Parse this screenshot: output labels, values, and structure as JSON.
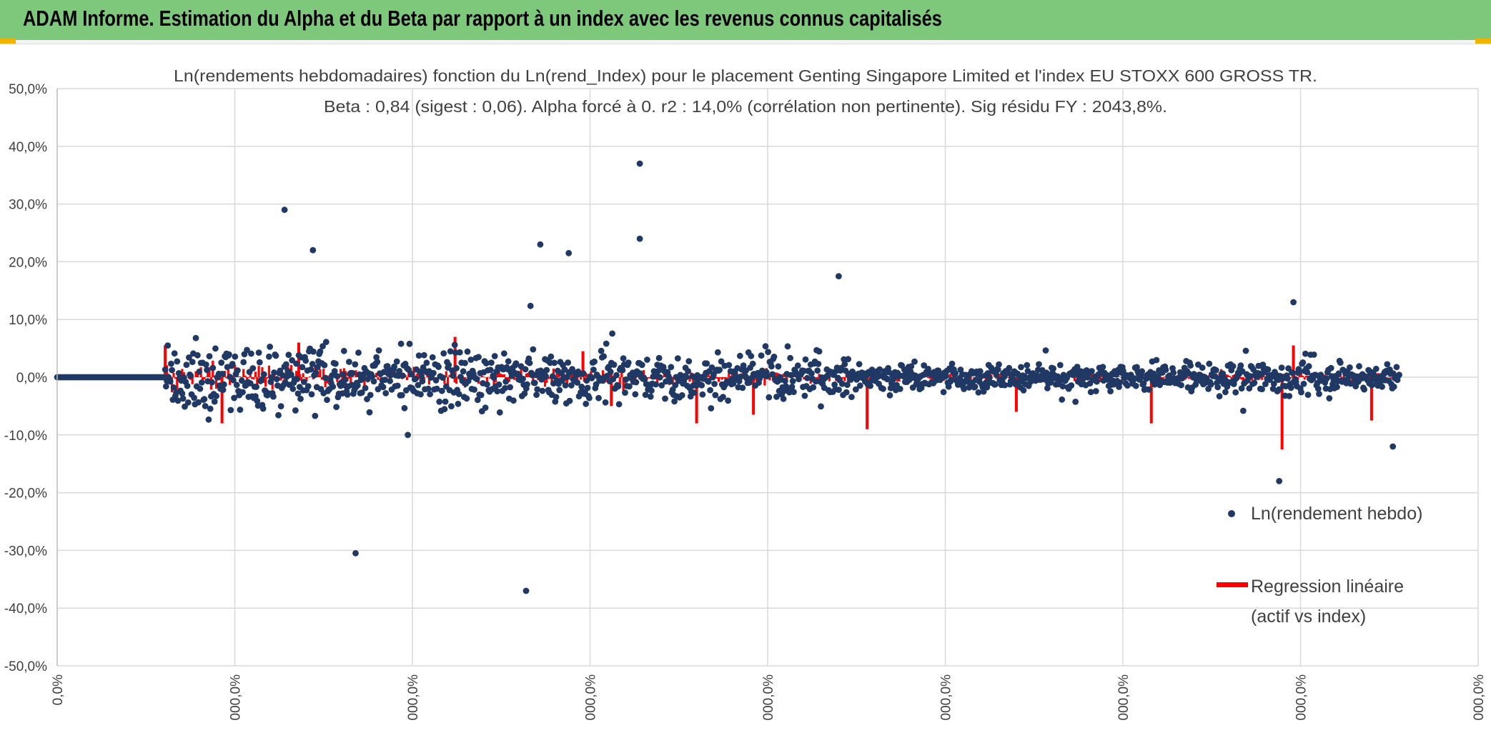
{
  "header": {
    "title": "ADAM Informe. Estimation du Alpha et du Beta par rapport à un index avec les revenus connus capitalisés"
  },
  "colors": {
    "banner": "#7ec87c",
    "points": "#203864",
    "regression": "#ff0000",
    "grid": "#d9d9d9",
    "corner_accent": "#f0b400"
  },
  "chart_data": {
    "type": "scatter",
    "title": "Ln(rendements hebdomadaires) fonction du Ln(rend_Index) pour le placement Genting Singapore Limited et l'index EU STOXX 600 GROSS TR.",
    "subtitle": "Beta : 0,84 (sigest : 0,06). Alpha forcé à 0. r2 : 14,0% (corrélation non pertinente). Sig résidu FY : 2043,8%.",
    "xlabel": "",
    "ylabel": "",
    "ylim": [
      -0.5,
      0.5
    ],
    "y_ticks": [
      "50,0%",
      "40,0%",
      "30,0%",
      "20,0%",
      "10,0%",
      "0,0%",
      "-10,0%",
      "-20,0%",
      "-30,0%",
      "-40,0%",
      "-50,0%"
    ],
    "x_ticks": [
      "0,0%",
      "000,0%",
      "000,0%",
      "000,0%",
      "000,0%",
      "000,0%",
      "000,0%",
      "000,0%",
      "000,0%"
    ],
    "grid": true,
    "legend_position": "right",
    "series": [
      {
        "name": "Ln(rendement hebdo)",
        "style": "markers",
        "color": "#203864"
      },
      {
        "name": "Regression linéaire (actif vs index)",
        "style": "line",
        "color": "#ff0000"
      }
    ],
    "notable_points": [
      {
        "x_index": 0.16,
        "y": 0.29
      },
      {
        "x_index": 0.18,
        "y": 0.22
      },
      {
        "x_index": 0.21,
        "y": -0.305
      },
      {
        "x_index": 0.33,
        "y": -0.37
      },
      {
        "x_index": 0.34,
        "y": 0.23
      },
      {
        "x_index": 0.36,
        "y": 0.215
      },
      {
        "x_index": 0.41,
        "y": 0.37
      },
      {
        "x_index": 0.41,
        "y": 0.24
      },
      {
        "x_index": 0.55,
        "y": 0.175
      },
      {
        "x_index": 0.86,
        "y": -0.18
      },
      {
        "x_index": 0.87,
        "y": 0.13
      },
      {
        "x_index": 0.94,
        "y": -0.12
      }
    ]
  },
  "legend": {
    "item1": "Ln(rendement hebdo)",
    "item2_line1": "Regression linéaire",
    "item2_line2": "(actif vs index)"
  }
}
